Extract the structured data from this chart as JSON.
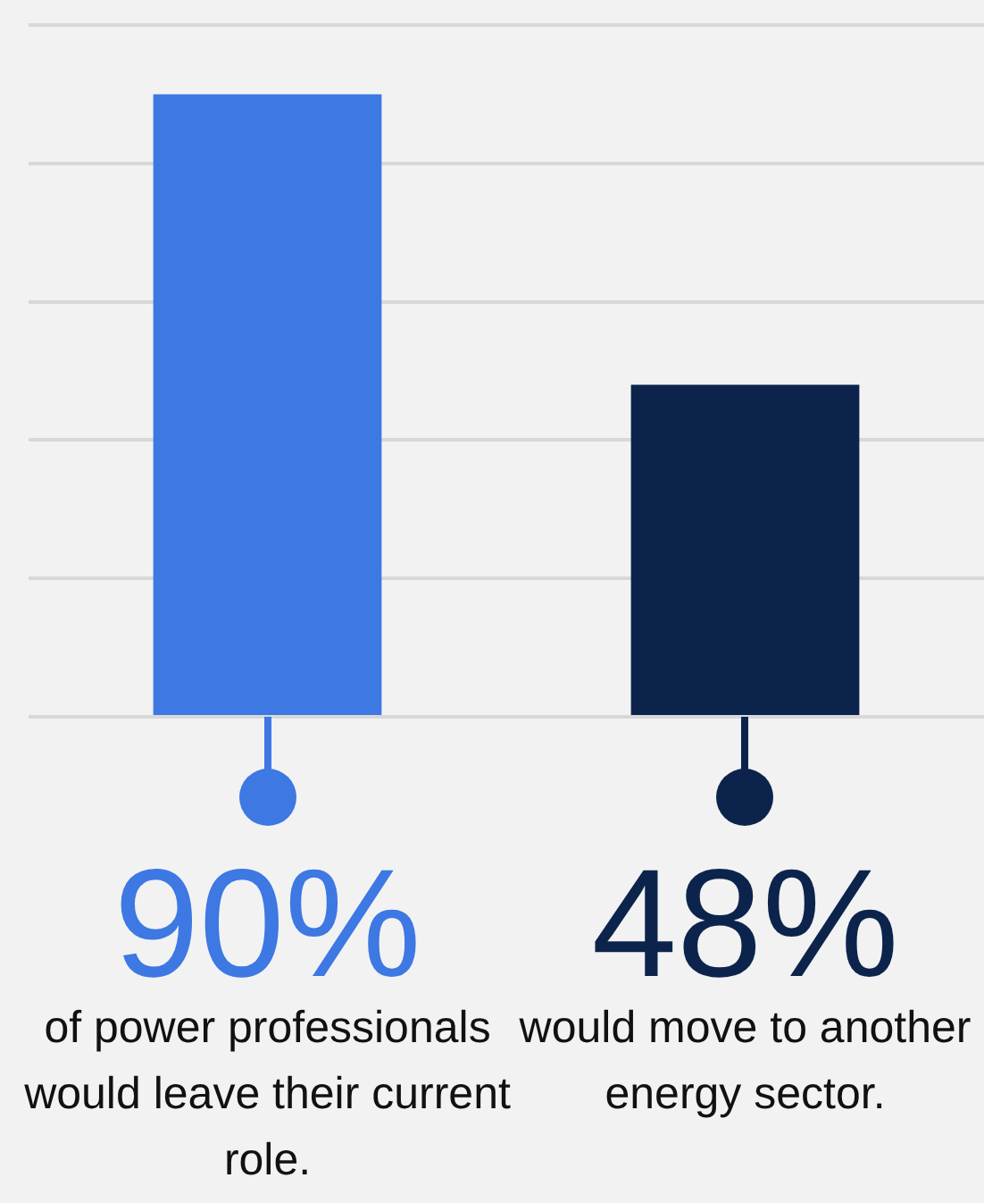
{
  "chart_data": {
    "type": "bar",
    "categories": [
      "of power professionals would leave their current role.",
      "would move to another energy sector."
    ],
    "values": [
      90,
      48
    ],
    "colors": [
      "#3d78e3",
      "#0c244c"
    ],
    "value_labels": [
      "90%",
      "48%"
    ],
    "ylim": [
      0,
      100
    ],
    "yticks": [
      {
        "value": 0,
        "label": null
      },
      {
        "value": 20,
        "label": null
      },
      {
        "value": 40,
        "label": null
      },
      {
        "value": 60,
        "label": null
      },
      {
        "value": 80,
        "label": null
      },
      {
        "value": 100,
        "label": null
      }
    ],
    "grid": "y",
    "legend": false,
    "tick_labels": "x"
  }
}
